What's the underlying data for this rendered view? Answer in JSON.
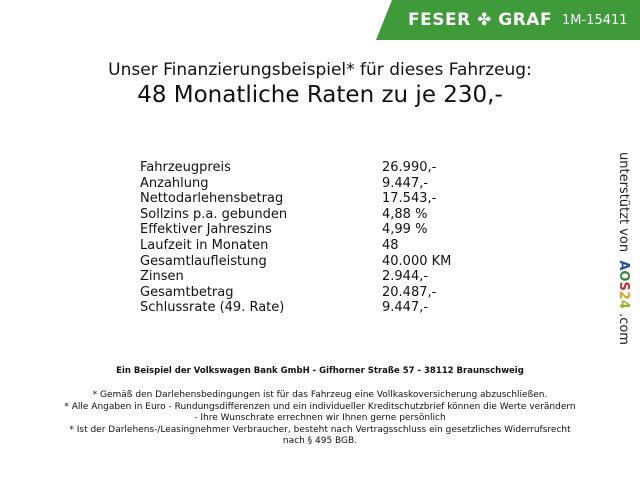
{
  "header": {
    "brand": "FESER ✤ GRAF",
    "code": "1M-15411",
    "color": "#3f9a3a"
  },
  "title": "Unser Finanzierungsbeispiel* für dieses Fahrzeug:",
  "subtitle": "48 Monatliche Raten zu je 230,-",
  "rows": [
    {
      "label": "Fahrzeugpreis",
      "value": "26.990,-"
    },
    {
      "label": "Anzahlung",
      "value": "9.447,-"
    },
    {
      "label": "Nettodarlehensbetrag",
      "value": "17.543,-"
    },
    {
      "label": "Sollzins p.a. gebunden",
      "value": "4,88 %"
    },
    {
      "label": "Effektiver Jahreszins",
      "value": "4,99 %"
    },
    {
      "label": "Laufzeit in Monaten",
      "value": "48"
    },
    {
      "label": "Gesamtlaufleistung",
      "value": "40.000 KM"
    },
    {
      "label": "Zinsen",
      "value": "2.944,-"
    },
    {
      "label": "Gesamtbetrag",
      "value": "20.487,-"
    },
    {
      "label": "Schlussrate (49. Rate)",
      "value": "9.447,-"
    }
  ],
  "side": {
    "text": "unterstützt von",
    "logo": "AOS24",
    "suffix": ".com"
  },
  "bank": "Ein Beispiel der Volkswagen Bank GmbH - Gifhorner Straße 57 - 38112 Braunschweig",
  "notes": [
    "* Gemäß den Darlehensbedingungen ist für das Fahrzeug eine Vollkaskoversicherung abzuschließen.",
    "* Alle Angaben in Euro - Rundungsdifferenzen und ein individueller Kreditschutzbrief können die Werte verändern",
    "- Ihre Wunschrate errechnen wir Ihnen gerne persönlich",
    "* Ist der Darlehens-/Leasingnehmer Verbraucher, besteht nach Vertragsschluss ein gesetzliches Widerrufsrecht",
    "nach § 495 BGB."
  ]
}
